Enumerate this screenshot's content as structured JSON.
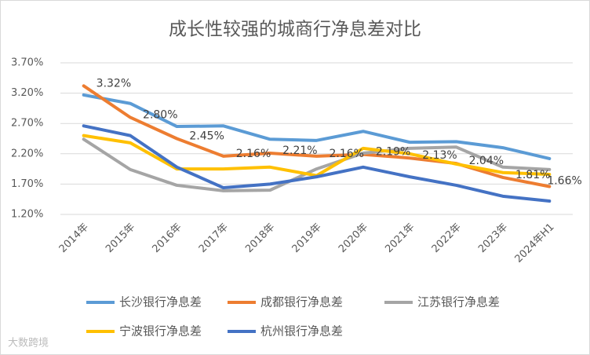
{
  "chart_data": {
    "type": "line",
    "title": "成长性较强的城商行净息差对比",
    "categories": [
      "2014年",
      "2015年",
      "2016年",
      "2017年",
      "2018年",
      "2019年",
      "2020年",
      "2021年",
      "2022年",
      "2023年",
      "2024年H1"
    ],
    "series": [
      {
        "name": "长沙银行净息差",
        "color": "#5b9bd5",
        "values": [
          3.17,
          3.03,
          2.65,
          2.66,
          2.44,
          2.42,
          2.57,
          2.39,
          2.4,
          2.3,
          2.12
        ]
      },
      {
        "name": "成都银行净息差",
        "color": "#ed7d31",
        "values": [
          3.32,
          2.8,
          2.45,
          2.16,
          2.21,
          2.16,
          2.19,
          2.13,
          2.04,
          1.81,
          1.66
        ],
        "value_labels": [
          "3.32%",
          "2.80%",
          "2.45%",
          "2.16%",
          "2.21%",
          "2.16%",
          "2.19%",
          "2.13%",
          "2.04%",
          "1.81%",
          "1.66%"
        ]
      },
      {
        "name": "江苏银行净息差",
        "color": "#a5a5a5",
        "values": [
          2.44,
          1.94,
          1.68,
          1.59,
          1.6,
          1.95,
          2.21,
          2.29,
          2.31,
          1.98,
          1.94
        ]
      },
      {
        "name": "宁波银行净息差",
        "color": "#ffc000",
        "values": [
          2.5,
          2.38,
          1.95,
          1.95,
          1.98,
          1.84,
          2.29,
          2.2,
          2.03,
          1.89,
          1.86
        ]
      },
      {
        "name": "杭州银行净息差",
        "color": "#4472c4",
        "values": [
          2.66,
          2.5,
          1.98,
          1.64,
          1.7,
          1.82,
          1.98,
          1.82,
          1.68,
          1.5,
          1.42
        ]
      }
    ],
    "ylim": [
      1.2,
      3.7
    ],
    "yticks": [
      {
        "value": 1.2,
        "label": "1.20%"
      },
      {
        "value": 1.7,
        "label": "1.70%"
      },
      {
        "value": 2.2,
        "label": "2.20%"
      },
      {
        "value": 2.7,
        "label": "2.70%"
      },
      {
        "value": 3.2,
        "label": "3.20%"
      },
      {
        "value": 3.7,
        "label": "3.70%"
      }
    ],
    "grid": true,
    "legend": "bottom",
    "watermark": "大数跨境"
  }
}
